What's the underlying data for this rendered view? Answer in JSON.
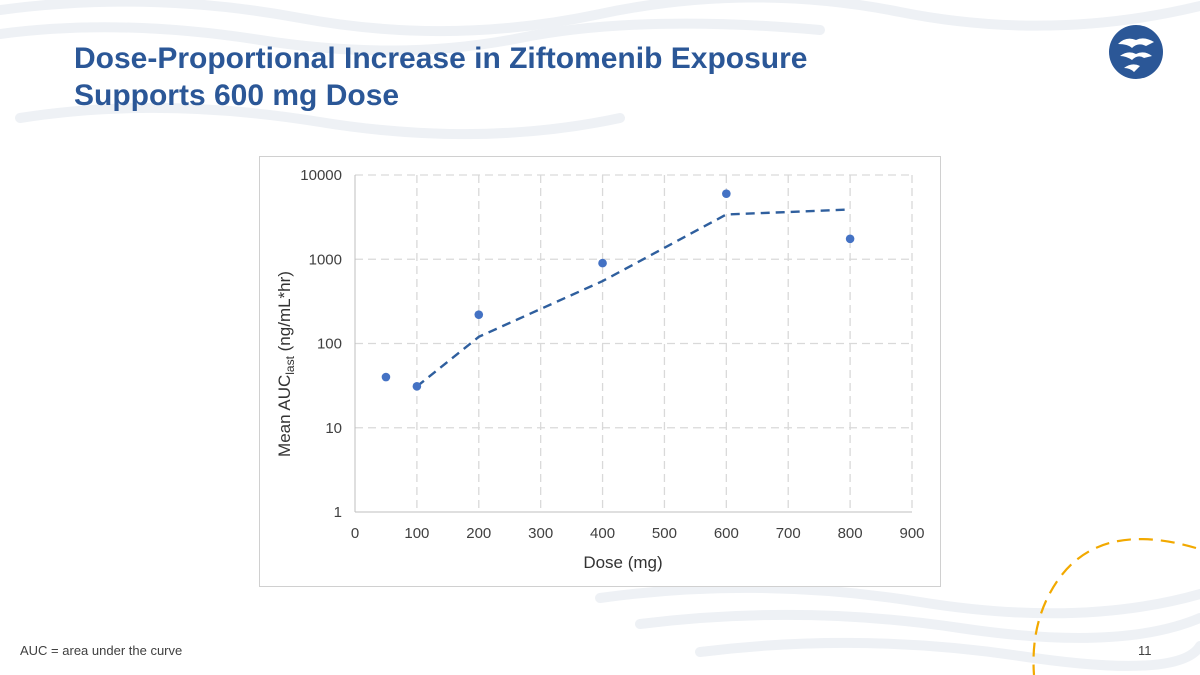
{
  "slide": {
    "title_line1": "Dose-Proportional Increase in Ziftomenib Exposure",
    "title_line2": "Supports 600 mg Dose",
    "footnote": "AUC = area under the curve",
    "page_number": "11",
    "logo": "company-logo-icon"
  },
  "colors": {
    "title": "#2b5797",
    "marker": "#4472c4",
    "trendline": "#2f5f9e",
    "grid": "#d9d9d9",
    "accent_arc": "#f2a900"
  },
  "chart_data": {
    "type": "scatter",
    "xlabel": "Dose (mg)",
    "ylabel_main": "Mean AUC",
    "ylabel_sub": "last",
    "ylabel_suffix": " (ng/mL*hr)",
    "xlim": [
      0,
      900
    ],
    "ylim": [
      1,
      10000
    ],
    "yscale": "log",
    "grid": true,
    "x_ticks": [
      0,
      100,
      200,
      300,
      400,
      500,
      600,
      700,
      800,
      900
    ],
    "x_tick_labels": [
      "0",
      "100",
      "200",
      "300",
      "400",
      "500",
      "600",
      "700",
      "800",
      "900"
    ],
    "y_ticks": [
      1,
      10,
      100,
      1000,
      10000
    ],
    "y_tick_labels": [
      "1",
      "10",
      "100",
      "1000",
      "10000"
    ],
    "series": [
      {
        "name": "Mean AUClast",
        "x": [
          50,
          100,
          200,
          400,
          600,
          800
        ],
        "y": [
          40,
          31,
          220,
          900,
          6000,
          1750
        ]
      }
    ],
    "trendline": {
      "style": "dashed",
      "x": [
        100,
        200,
        400,
        600,
        800
      ],
      "y": [
        31,
        120,
        550,
        3400,
        3900
      ]
    }
  }
}
